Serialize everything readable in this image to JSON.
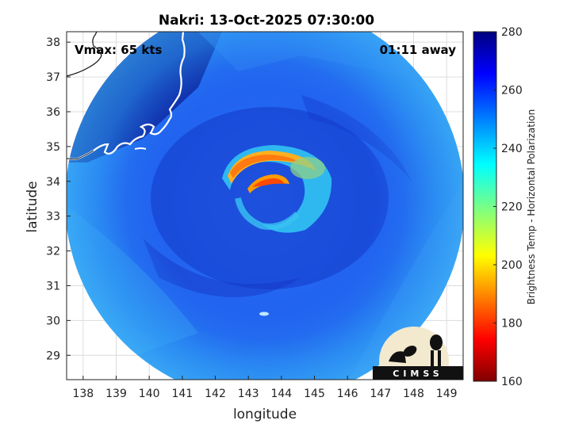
{
  "title": "Nakri: 13-Oct-2025 07:30:00",
  "vmax_label": "Vmax: 65 kts",
  "time_label": "01:11 away",
  "logo_text": "CIMSS",
  "chart_data": {
    "type": "heatmap",
    "xlabel": "longitude",
    "ylabel": "latitude",
    "xlim": [
      137.5,
      149.5
    ],
    "ylim": [
      28.3,
      38.3
    ],
    "xticks": [
      138,
      139,
      140,
      141,
      142,
      143,
      144,
      145,
      146,
      147,
      148,
      149
    ],
    "yticks": [
      29,
      30,
      31,
      32,
      33,
      34,
      35,
      36,
      37,
      38
    ],
    "grid": true,
    "colorbar": {
      "label": "Brightness Temp - Horizontal Polarization",
      "range": [
        160,
        280
      ],
      "ticks": [
        160,
        180,
        200,
        220,
        240,
        260,
        280
      ],
      "colormap": "jet"
    },
    "storm_center": {
      "lon": 143.3,
      "lat": 33.6
    },
    "swath_center": {
      "lon": 143.4,
      "lat": 33.4
    }
  },
  "colors": {
    "background_cold": "#0a1a9c",
    "swath_base": "#1e5cf0",
    "warm_core": "#ff9a00",
    "coastline": "#ffffff"
  }
}
